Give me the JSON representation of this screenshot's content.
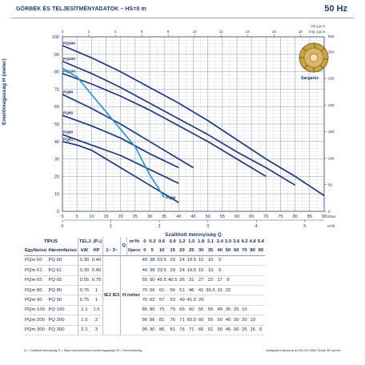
{
  "header": {
    "title": "GÖRBÉK ÉS TELJESÍTMÉNYADATOK  –  HS=0 m",
    "frequency": "50 Hz"
  },
  "impeller_label": "Sárgaréz",
  "chart_data": {
    "type": "line",
    "title": "",
    "xlabel": "Szállított mennyiség  Q",
    "xlabel_unit_left": "l/min",
    "xlabel_unit_right": "m³/h",
    "ylabel": "Emelőmagasság  H  (méter)",
    "ylabel_right": "feet",
    "top_axis_unit": "Imp. g.p.m.",
    "bottom_axis_unit2": "US g.p.m.",
    "xlim": [
      0,
      90
    ],
    "ylim": [
      0,
      100
    ],
    "x_ticks": [
      0,
      5,
      10,
      15,
      20,
      25,
      30,
      35,
      40,
      45,
      50,
      55,
      60,
      65,
      70,
      75,
      80,
      85,
      90
    ],
    "y_ticks": [
      0,
      10,
      20,
      30,
      40,
      50,
      60,
      70,
      80,
      90,
      100
    ],
    "m3h_ticks": [
      0,
      1,
      2,
      3,
      4,
      5
    ],
    "feet_ticks": [
      0,
      50,
      100,
      150,
      200,
      250,
      300
    ],
    "imp_gpm_ticks": [
      0,
      2,
      4,
      6,
      8,
      10,
      12,
      14,
      16,
      18
    ],
    "series": [
      {
        "name": "PQ300",
        "x": [
          0,
          10,
          20,
          30,
          40,
          50,
          60,
          70,
          80,
          90
        ],
        "y": [
          95,
          88,
          80,
          71,
          62,
          52,
          41,
          30,
          20,
          9
        ],
        "color": "#1f3a7a"
      },
      {
        "name": "PQ200",
        "x": [
          0,
          10,
          20,
          30,
          40,
          50,
          60,
          70,
          80
        ],
        "y": [
          86,
          79,
          71,
          62,
          53,
          44,
          34,
          25,
          15
        ],
        "color": "#1f3a7a"
      },
      {
        "name": "PQ100",
        "x": [
          0,
          10,
          20,
          30,
          40,
          50,
          60,
          70
        ],
        "y": [
          79,
          73,
          66,
          58,
          49,
          40,
          30,
          20
        ],
        "color": "#1f3a7a"
      },
      {
        "name": "PQ80",
        "x": [
          0,
          10,
          20,
          30,
          40,
          45
        ],
        "y": [
          67,
          59,
          50,
          40,
          30,
          25
        ],
        "color": "#1f3a7a"
      },
      {
        "name": "PQ65",
        "x": [
          0,
          10,
          20,
          30,
          40
        ],
        "y": [
          55,
          49,
          42,
          33,
          25
        ],
        "color": "#1f3a7a"
      },
      {
        "name": "PQ60",
        "x": [
          0,
          10,
          20,
          30,
          40
        ],
        "y": [
          44,
          38,
          32,
          24,
          16
        ],
        "color": "#1f3a7a"
      },
      {
        "name": "PQ61",
        "x": [
          0,
          5,
          10,
          20,
          30,
          40
        ],
        "y": [
          40,
          38,
          35,
          25,
          15,
          5
        ],
        "color": "#1f3a7a"
      },
      {
        "name": "PQ90",
        "x": [
          0,
          5,
          10,
          20,
          25,
          30,
          35
        ],
        "y": [
          82,
          77,
          67,
          47,
          37,
          21,
          8
        ],
        "color": "#2f96c8"
      }
    ]
  },
  "table": {
    "header": {
      "tipus": "TÍPUS",
      "telj": "TELJ. (P₂)",
      "q": "Q",
      "egyfazisu": "Egyfázisú",
      "haromfazisu": "Háromfázisú",
      "kw": "kW",
      "hp": "HP",
      "ie": "1~  3~",
      "unit_m3h": "m³/h",
      "unit_lpm": "l/perc",
      "h_label": "H méter",
      "ie_label": "IE2 IE3"
    },
    "q_m3h": [
      "0",
      "0.3",
      "0.6",
      "0.9",
      "1.2",
      "1.5",
      "1.8",
      "2.1",
      "2.4",
      "3.0",
      "3.6",
      "4.2",
      "4.8",
      "5.4"
    ],
    "q_lpm": [
      "0",
      "5",
      "10",
      "15",
      "20",
      "25",
      "30",
      "35",
      "40",
      "50",
      "60",
      "70",
      "80",
      "90"
    ],
    "rows": [
      {
        "m1": "PQm 60",
        "m3": "PQ 60",
        "kw": "0.30",
        "hp": "0.40",
        "h": [
          "40",
          "38",
          "33.5",
          "29",
          "24",
          "19.5",
          "15",
          "10",
          "5",
          "",
          "",
          "",
          "",
          ""
        ]
      },
      {
        "m1": "PQm 61",
        "m3": "PQ 61",
        "kw": "0.30",
        "hp": "0.40",
        "h": [
          "40",
          "38",
          "33.5",
          "29",
          "24",
          "19.5",
          "15",
          "10",
          "5",
          "",
          "",
          "",
          "",
          ""
        ]
      },
      {
        "m1": "PQm 65",
        "m3": "PQ 65",
        "kw": "0.55",
        "hp": "0.75",
        "h": [
          "55",
          "50",
          "45.5",
          "40.5",
          "36",
          "31",
          "27",
          "22",
          "17",
          "8",
          "",
          "",
          "",
          ""
        ]
      },
      {
        "m1": "PQm 80",
        "m3": "PQ 80",
        "kw": "0.75",
        "hp": "1",
        "h": [
          "70",
          "66",
          "61",
          "56",
          "51",
          "46",
          "41",
          "36.5",
          "31",
          "22",
          "",
          "",
          "",
          ""
        ]
      },
      {
        "m1": "PQm 90",
        "m3": "PQ 90",
        "kw": "0.75",
        "hp": "1",
        "h": [
          "70",
          "62",
          "57",
          "53",
          "49",
          "41.5",
          "29",
          "",
          "",
          "",
          "",
          "",
          "",
          ""
        ]
      },
      {
        "m1": "PQm 100",
        "m3": "PQ 100",
        "kw": "1.1",
        "hp": "1.5",
        "h": [
          "85",
          "80",
          "75",
          "70",
          "65",
          "60",
          "55",
          "50",
          "45",
          "35",
          "25",
          "15",
          "",
          ""
        ]
      },
      {
        "m1": "PQm 200",
        "m3": "PQ 200",
        "kw": "1.5",
        "hp": "2",
        "h": [
          "90",
          "86",
          "81",
          "76",
          "71",
          "65.5",
          "60",
          "55",
          "50",
          "40",
          "30",
          "20",
          "10",
          ""
        ]
      },
      {
        "m1": "PQm 300",
        "m3": "PQ 300",
        "kw": "2.2",
        "hp": "3",
        "h": [
          "95",
          "90",
          "86",
          "81",
          "76",
          "71",
          "66",
          "61",
          "56",
          "46",
          "36",
          "26",
          "16",
          "6"
        ]
      }
    ]
  },
  "footnote_left": "Q = Szállított mennyiség    H = Teljes manometrikus emelőmagasság    HS = Szívómélység",
  "footnote_right": "Jellegörbe tolerancia az EN ISO 9906 Grade 3B szerint."
}
